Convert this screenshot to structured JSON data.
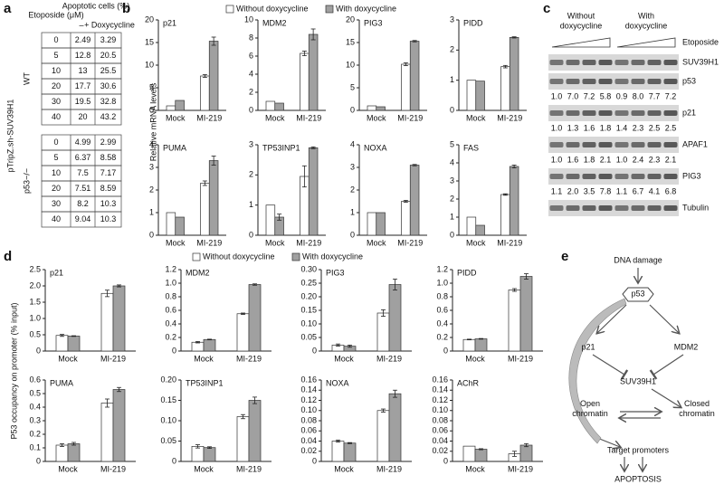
{
  "panel_a": {
    "label": "a",
    "header": {
      "etoposide": "Etoposide (μM)",
      "apoptotic": "Apoptotic cells (%)",
      "minus": "–",
      "plus": "+ Doxycycline"
    },
    "construct": "pTripZ.sh-SUV39H1",
    "groups": [
      {
        "name": "WT",
        "rows": [
          [
            "0",
            "2.49",
            "3.29"
          ],
          [
            "5",
            "12.8",
            "20.5"
          ],
          [
            "10",
            "13",
            "25.5"
          ],
          [
            "20",
            "17.7",
            "30.6"
          ],
          [
            "30",
            "19.5",
            "32.8"
          ],
          [
            "40",
            "20",
            "43.2"
          ]
        ]
      },
      {
        "name": "p53−/−",
        "rows": [
          [
            "0",
            "4.99",
            "2.99"
          ],
          [
            "5",
            "6.37",
            "8.58"
          ],
          [
            "10",
            "7.5",
            "7.17"
          ],
          [
            "20",
            "7.51",
            "8.59"
          ],
          [
            "30",
            "8.2",
            "10.3"
          ],
          [
            "40",
            "9.04",
            "10.3"
          ]
        ]
      }
    ]
  },
  "chart_data": [
    {
      "type": "bar",
      "label": "b",
      "ylabel": "Relative mRNA levels",
      "categories": [
        "Mock",
        "MI-219"
      ],
      "series": [
        {
          "name": "Without doxycycline",
          "color": "#ffffff"
        },
        {
          "name": "With doxycycline",
          "color": "#a0a0a0"
        }
      ],
      "charts": [
        {
          "title": "p21",
          "ylim": [
            0,
            20
          ],
          "yticks": [
            0,
            5,
            10,
            15,
            20
          ],
          "series": [
            {
              "values": [
                1.0,
                7.6
              ],
              "errors": [
                null,
                0.3
              ]
            },
            {
              "values": [
                2.2,
                15.3
              ],
              "errors": [
                null,
                0.9
              ]
            }
          ]
        },
        {
          "title": "MDM2",
          "ylim": [
            0,
            10
          ],
          "yticks": [
            0,
            2,
            4,
            6,
            8,
            10
          ],
          "series": [
            {
              "values": [
                1.0,
                6.3
              ],
              "errors": [
                null,
                0.25
              ]
            },
            {
              "values": [
                0.8,
                8.4
              ],
              "errors": [
                null,
                0.6
              ]
            }
          ]
        },
        {
          "title": "PIG3",
          "ylim": [
            0,
            20
          ],
          "yticks": [
            0,
            5,
            10,
            15,
            20
          ],
          "series": [
            {
              "values": [
                1.0,
                10.2
              ],
              "errors": [
                null,
                0.3
              ]
            },
            {
              "values": [
                0.8,
                15.3
              ],
              "errors": [
                null,
                0.15
              ]
            }
          ]
        },
        {
          "title": "PIDD",
          "ylim": [
            0,
            3
          ],
          "yticks": [
            0,
            1,
            2,
            3
          ],
          "series": [
            {
              "values": [
                1.0,
                1.45
              ],
              "errors": [
                null,
                0.04
              ]
            },
            {
              "values": [
                0.97,
                2.42
              ],
              "errors": [
                null,
                0.02
              ]
            }
          ]
        },
        {
          "title": "PUMA",
          "ylim": [
            0,
            4
          ],
          "yticks": [
            0,
            1,
            2,
            3,
            4
          ],
          "series": [
            {
              "values": [
                1.0,
                2.3
              ],
              "errors": [
                null,
                0.1
              ]
            },
            {
              "values": [
                0.8,
                3.3
              ],
              "errors": [
                null,
                0.2
              ]
            }
          ]
        },
        {
          "title": "TP53INP1",
          "ylim": [
            0,
            3
          ],
          "yticks": [
            0,
            1,
            2,
            3
          ],
          "series": [
            {
              "values": [
                1.0,
                1.95
              ],
              "errors": [
                null,
                0.35
              ]
            },
            {
              "values": [
                0.6,
                2.9
              ],
              "errors": [
                0.1,
                0.03
              ]
            }
          ]
        },
        {
          "title": "NOXA",
          "ylim": [
            0,
            4
          ],
          "yticks": [
            0,
            1,
            2,
            3,
            4
          ],
          "series": [
            {
              "values": [
                1.0,
                1.5
              ],
              "errors": [
                null,
                0.04
              ]
            },
            {
              "values": [
                1.0,
                3.1
              ],
              "errors": [
                null,
                0.03
              ]
            }
          ]
        },
        {
          "title": "FAS",
          "ylim": [
            0,
            5
          ],
          "yticks": [
            0,
            1,
            2,
            3,
            4,
            5
          ],
          "series": [
            {
              "values": [
                1.0,
                2.25
              ],
              "errors": [
                null,
                0.04
              ]
            },
            {
              "values": [
                0.55,
                3.8
              ],
              "errors": [
                null,
                0.08
              ]
            }
          ]
        }
      ]
    },
    {
      "type": "bar",
      "label": "d",
      "ylabel": "P53 occupancy on promoter (% input)",
      "categories": [
        "Mock",
        "MI-219"
      ],
      "series": [
        {
          "name": "Without doxycycline",
          "color": "#ffffff"
        },
        {
          "name": "With doxycycline",
          "color": "#a0a0a0"
        }
      ],
      "charts": [
        {
          "title": "p21",
          "ylim": [
            0,
            2.5
          ],
          "yticks": [
            0,
            0.5,
            {
              "value": 1,
              "label": "1.0"
            },
            1.5,
            {
              "value": 2,
              "label": "2.0"
            },
            2.5
          ],
          "series": [
            {
              "values": [
                0.48,
                1.77
              ],
              "errors": [
                0.03,
                0.1
              ]
            },
            {
              "values": [
                0.46,
                2.0
              ],
              "errors": [
                0.01,
                0.03
              ]
            }
          ]
        },
        {
          "title": "MDM2",
          "ylim": [
            0,
            1.2
          ],
          "yticks": [
            0,
            0.2,
            0.4,
            0.6,
            0.8,
            {
              "value": 1,
              "label": "1.0"
            },
            1.2
          ],
          "series": [
            {
              "values": [
                0.13,
                0.55
              ],
              "errors": [
                0.01,
                0.01
              ]
            },
            {
              "values": [
                0.17,
                0.98
              ],
              "errors": [
                0.005,
                0.01
              ]
            }
          ]
        },
        {
          "title": "PIG3",
          "ylim": [
            0,
            0.3
          ],
          "yticks": [
            0,
            0.05,
            {
              "value": 0.1,
              "label": "0.10"
            },
            0.15,
            {
              "value": 0.2,
              "label": "0.20"
            },
            0.25,
            {
              "value": 0.3,
              "label": "0.30"
            }
          ],
          "series": [
            {
              "values": [
                0.022,
                0.14
              ],
              "errors": [
                0.004,
                0.012
              ]
            },
            {
              "values": [
                0.018,
                0.245
              ],
              "errors": [
                0.004,
                0.02
              ]
            }
          ]
        },
        {
          "title": "PIDD",
          "ylim": [
            0,
            1.2
          ],
          "yticks": [
            0,
            0.2,
            0.4,
            0.6,
            0.8,
            {
              "value": 1,
              "label": "1.0"
            },
            1.2
          ],
          "series": [
            {
              "values": [
                0.17,
                0.9
              ],
              "errors": [
                0.005,
                0.02
              ]
            },
            {
              "values": [
                0.18,
                1.1
              ],
              "errors": [
                0.005,
                0.04
              ]
            }
          ]
        },
        {
          "title": "PUMA",
          "ylim": [
            0,
            0.6
          ],
          "yticks": [
            0,
            0.1,
            0.2,
            0.3,
            0.4,
            0.5,
            0.6
          ],
          "series": [
            {
              "values": [
                0.12,
                0.43
              ],
              "errors": [
                0.01,
                0.03
              ]
            },
            {
              "values": [
                0.13,
                0.53
              ],
              "errors": [
                0.01,
                0.015
              ]
            }
          ]
        },
        {
          "title": "TP53INP1",
          "ylim": [
            0,
            0.2
          ],
          "yticks": [
            0,
            0.05,
            {
              "value": 0.1,
              "label": "0.10"
            },
            0.15,
            {
              "value": 0.2,
              "label": "0.20"
            }
          ],
          "series": [
            {
              "values": [
                0.037,
                0.11
              ],
              "errors": [
                0.004,
                0.005
              ]
            },
            {
              "values": [
                0.034,
                0.15
              ],
              "errors": [
                0.002,
                0.008
              ]
            }
          ]
        },
        {
          "title": "NOXA",
          "ylim": [
            0,
            0.16
          ],
          "yticks": [
            0,
            0.02,
            0.04,
            0.06,
            0.08,
            {
              "value": 0.1,
              "label": "0.10"
            },
            0.12,
            0.14,
            0.16
          ],
          "series": [
            {
              "values": [
                0.04,
                0.1
              ],
              "errors": [
                0.002,
                0.003
              ]
            },
            {
              "values": [
                0.036,
                0.133
              ],
              "errors": [
                0.001,
                0.007
              ]
            }
          ]
        },
        {
          "title": "AChR",
          "ylim": [
            0,
            0.16
          ],
          "yticks": [
            0,
            0.02,
            0.04,
            0.06,
            0.08,
            {
              "value": 0.1,
              "label": "0.10"
            },
            0.12,
            0.14,
            0.16
          ],
          "series": [
            {
              "values": [
                0.03,
                0.015
              ],
              "errors": [
                null,
                0.005
              ]
            },
            {
              "values": [
                0.024,
                0.032
              ],
              "errors": [
                0.001,
                0.003
              ]
            }
          ]
        }
      ]
    }
  ],
  "panel_c": {
    "label": "c",
    "conditions": [
      [
        "Without",
        "doxycycline"
      ],
      [
        "With",
        "doxycycline"
      ]
    ],
    "treatment": "Etoposide",
    "blots": [
      {
        "name": "SUV39H1"
      },
      {
        "name": "p53",
        "quant": [
          "1.0",
          "7.0",
          "7.2",
          "5.8",
          "0.9",
          "8.0",
          "7.7",
          "7.2"
        ]
      },
      {
        "name": "p21",
        "quant": [
          "1.0",
          "1.3",
          "1.6",
          "1.8",
          "1.4",
          "2.3",
          "2.5",
          "2.5"
        ]
      },
      {
        "name": "APAF1",
        "quant": [
          "1.0",
          "1.6",
          "1.8",
          "2.1",
          "1.0",
          "2.4",
          "2.3",
          "2.1"
        ]
      },
      {
        "name": "PIG3",
        "quant": [
          "1.1",
          "2.0",
          "3.5",
          "7.8",
          "1.1",
          "6.7",
          "4.1",
          "6.8"
        ]
      },
      {
        "name": "Tubulin"
      }
    ]
  },
  "panel_e": {
    "label": "e",
    "nodes": [
      {
        "lines": [
          "DNA damage"
        ]
      },
      {
        "lines": [
          "p53"
        ]
      },
      {
        "lines": [
          "p21"
        ]
      },
      {
        "lines": [
          "MDM2"
        ]
      },
      {
        "lines": [
          "SUV39H1"
        ]
      },
      {
        "lines": [
          "Open",
          "chromatin"
        ]
      },
      {
        "lines": [
          "Closed",
          "chromatin"
        ]
      },
      {
        "lines": [
          "Target promoters"
        ]
      },
      {
        "lines": [
          "APOPTOSIS"
        ]
      }
    ]
  }
}
